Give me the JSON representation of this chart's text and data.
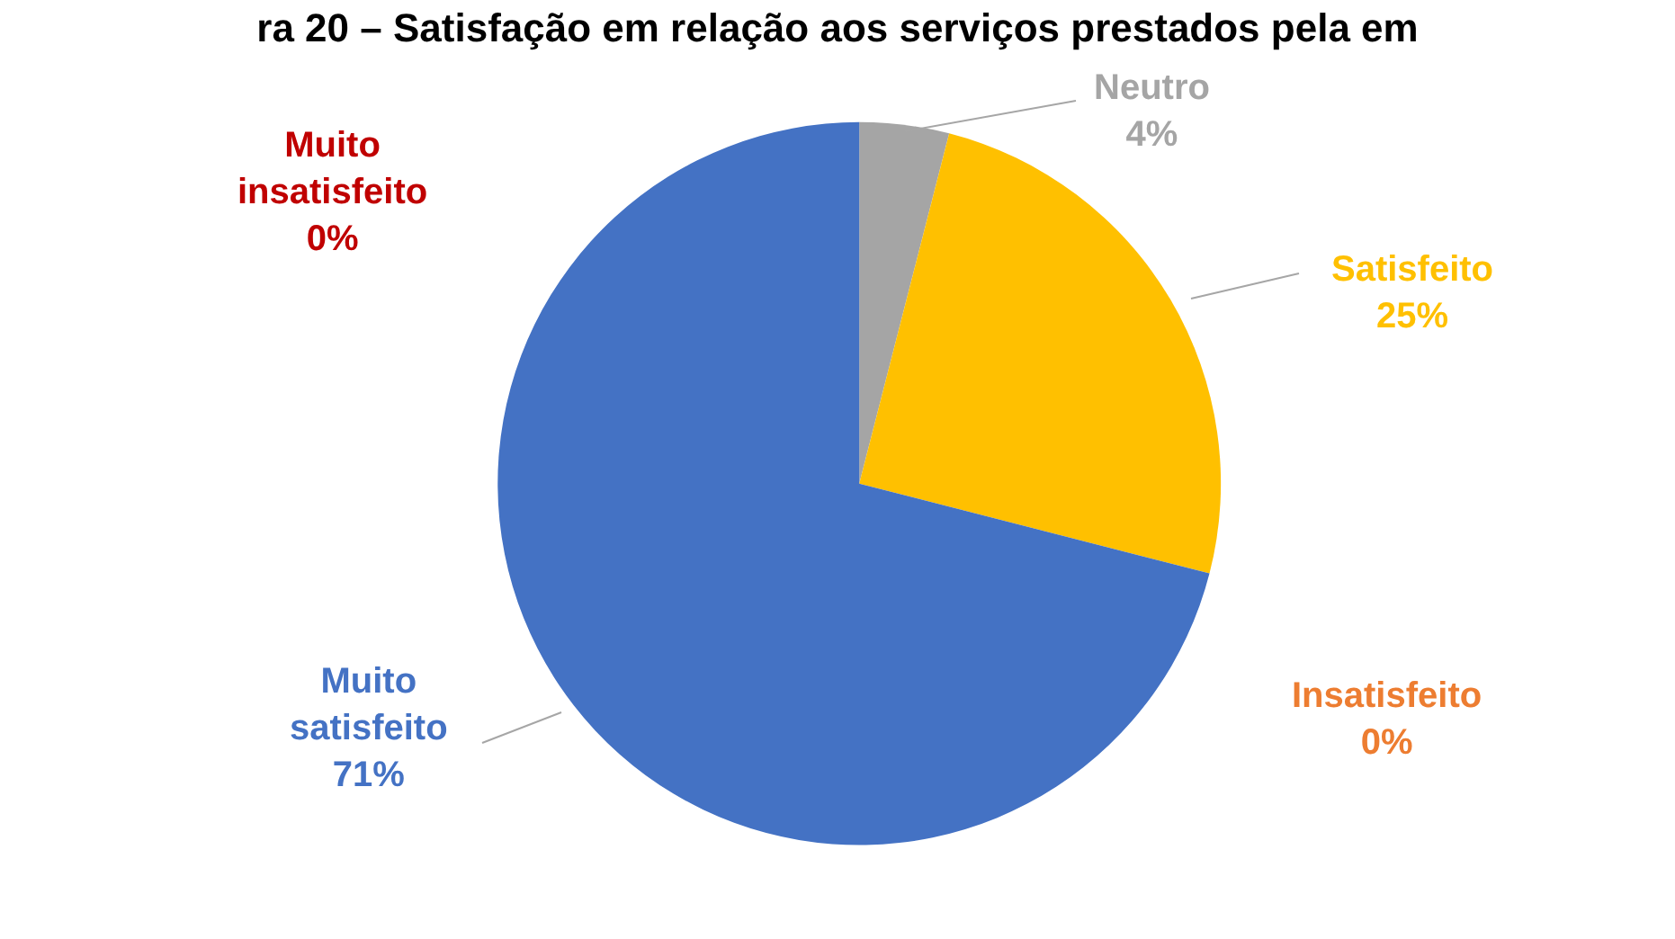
{
  "chart_data": {
    "type": "pie",
    "title": "ra 20 – Satisfação em relação aos serviços prestados pela em",
    "categories": [
      "Neutro",
      "Satisfeito",
      "Insatisfeito",
      "Muito satisfeito",
      "Muito insatisfeito"
    ],
    "values": [
      4,
      25,
      0,
      71,
      0
    ],
    "value_labels": [
      "4%",
      "25%",
      "0%",
      "71%",
      "0%"
    ],
    "colors": [
      "#a5a5a5",
      "#ffc000",
      "#ed7d31",
      "#4472c4",
      "#c00000"
    ],
    "legend": false
  }
}
